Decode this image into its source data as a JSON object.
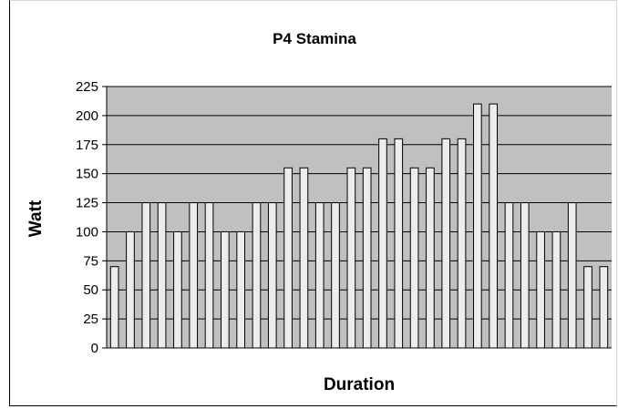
{
  "chart_data": {
    "type": "bar",
    "title": "P4 Stamina",
    "xlabel": "Duration",
    "ylabel": "Watt",
    "ylim": [
      0,
      225
    ],
    "yticks": [
      0,
      25,
      50,
      75,
      100,
      125,
      150,
      175,
      200,
      225
    ],
    "grid": true,
    "legend": "none",
    "plot_background": "#c0c0c0",
    "bar_color": "#ececec",
    "values": [
      70,
      100,
      125,
      125,
      100,
      125,
      125,
      100,
      100,
      125,
      125,
      155,
      155,
      125,
      125,
      155,
      155,
      180,
      180,
      155,
      155,
      180,
      180,
      210,
      210,
      125,
      125,
      100,
      100,
      125,
      70,
      70
    ]
  }
}
